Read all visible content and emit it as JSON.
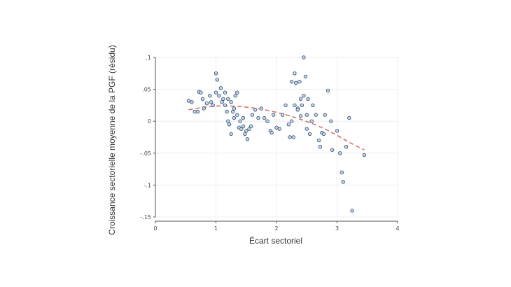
{
  "chart_data": {
    "type": "scatter",
    "title": "",
    "xlabel": "Écart sectoriel",
    "ylabel": "Croissance sectorielle moyenne de la PGF (résidu)",
    "xlim": [
      0,
      4
    ],
    "ylim": [
      -0.15,
      0.1
    ],
    "xticks": [
      0,
      1,
      2,
      3,
      4
    ],
    "xtick_labels": [
      "0",
      "1",
      "2",
      "3",
      "4"
    ],
    "yticks": [
      0.1,
      0.05,
      0,
      -0.05,
      -0.1,
      -0.15
    ],
    "ytick_labels": [
      ".1",
      ".05",
      "0",
      "-.05",
      "-.1",
      "-.15"
    ],
    "grid": true,
    "legend": "none",
    "colors": {
      "point_fill": "#c3d3e8",
      "point_stroke": "#2c4a70",
      "fit_line": "#d3736b",
      "grid": "#eeeeee",
      "axis": "#555555"
    },
    "series": [
      {
        "kind": "points",
        "x": [
          0.55,
          0.6,
          0.65,
          0.7,
          0.72,
          0.75,
          0.78,
          0.8,
          0.85,
          0.9,
          0.92,
          0.95,
          1.0,
          1.0,
          1.02,
          1.05,
          1.08,
          1.1,
          1.12,
          1.15,
          1.15,
          1.18,
          1.2,
          1.2,
          1.22,
          1.25,
          1.25,
          1.28,
          1.3,
          1.3,
          1.32,
          1.35,
          1.35,
          1.38,
          1.4,
          1.42,
          1.45,
          1.45,
          1.48,
          1.5,
          1.52,
          1.55,
          1.58,
          1.6,
          1.65,
          1.7,
          1.75,
          1.8,
          1.85,
          1.9,
          1.92,
          1.95,
          2.0,
          2.05,
          2.1,
          2.15,
          2.2,
          2.22,
          2.25,
          2.25,
          2.28,
          2.3,
          2.3,
          2.32,
          2.35,
          2.35,
          2.38,
          2.4,
          2.4,
          2.42,
          2.45,
          2.45,
          2.48,
          2.5,
          2.5,
          2.52,
          2.55,
          2.58,
          2.6,
          2.65,
          2.7,
          2.72,
          2.75,
          2.78,
          2.8,
          2.85,
          2.9,
          2.92,
          3.0,
          3.05,
          3.08,
          3.1,
          3.15,
          3.2,
          3.25,
          3.45
        ],
        "y": [
          0.032,
          0.03,
          0.015,
          0.015,
          0.046,
          0.045,
          0.035,
          0.02,
          0.028,
          0.04,
          0.03,
          0.025,
          0.045,
          0.075,
          0.065,
          0.04,
          0.052,
          0.03,
          0.035,
          0.045,
          0.025,
          0.015,
          0.035,
          0.0,
          -0.005,
          0.03,
          -0.02,
          0.015,
          0.02,
          0.005,
          0.04,
          0.045,
          0.01,
          -0.01,
          0.0,
          -0.012,
          -0.008,
          0.005,
          -0.02,
          -0.015,
          -0.028,
          -0.012,
          -0.008,
          0.01,
          0.018,
          0.005,
          0.02,
          0.005,
          0.0,
          -0.015,
          -0.018,
          0.01,
          -0.01,
          -0.012,
          0.01,
          0.025,
          -0.005,
          -0.025,
          0.062,
          0.0,
          -0.025,
          0.075,
          0.025,
          0.06,
          0.02,
          0.018,
          0.062,
          0.035,
          0.008,
          0.025,
          0.04,
          0.1,
          0.07,
          0.01,
          -0.012,
          0.035,
          -0.02,
          0.0,
          0.025,
          0.01,
          -0.03,
          -0.04,
          -0.018,
          -0.02,
          0.01,
          0.048,
          0.0,
          -0.045,
          -0.015,
          -0.05,
          -0.08,
          -0.095,
          -0.04,
          0.005,
          -0.14,
          -0.053
        ]
      },
      {
        "kind": "fit",
        "x": [
          0.55,
          0.8,
          1.0,
          1.2,
          1.4,
          1.6,
          1.8,
          2.0,
          2.2,
          2.4,
          2.6,
          2.8,
          3.0,
          3.2,
          3.45
        ],
        "y": [
          0.018,
          0.022,
          0.024,
          0.024,
          0.023,
          0.021,
          0.018,
          0.014,
          0.009,
          0.003,
          -0.004,
          -0.012,
          -0.022,
          -0.033,
          -0.045
        ]
      }
    ]
  }
}
